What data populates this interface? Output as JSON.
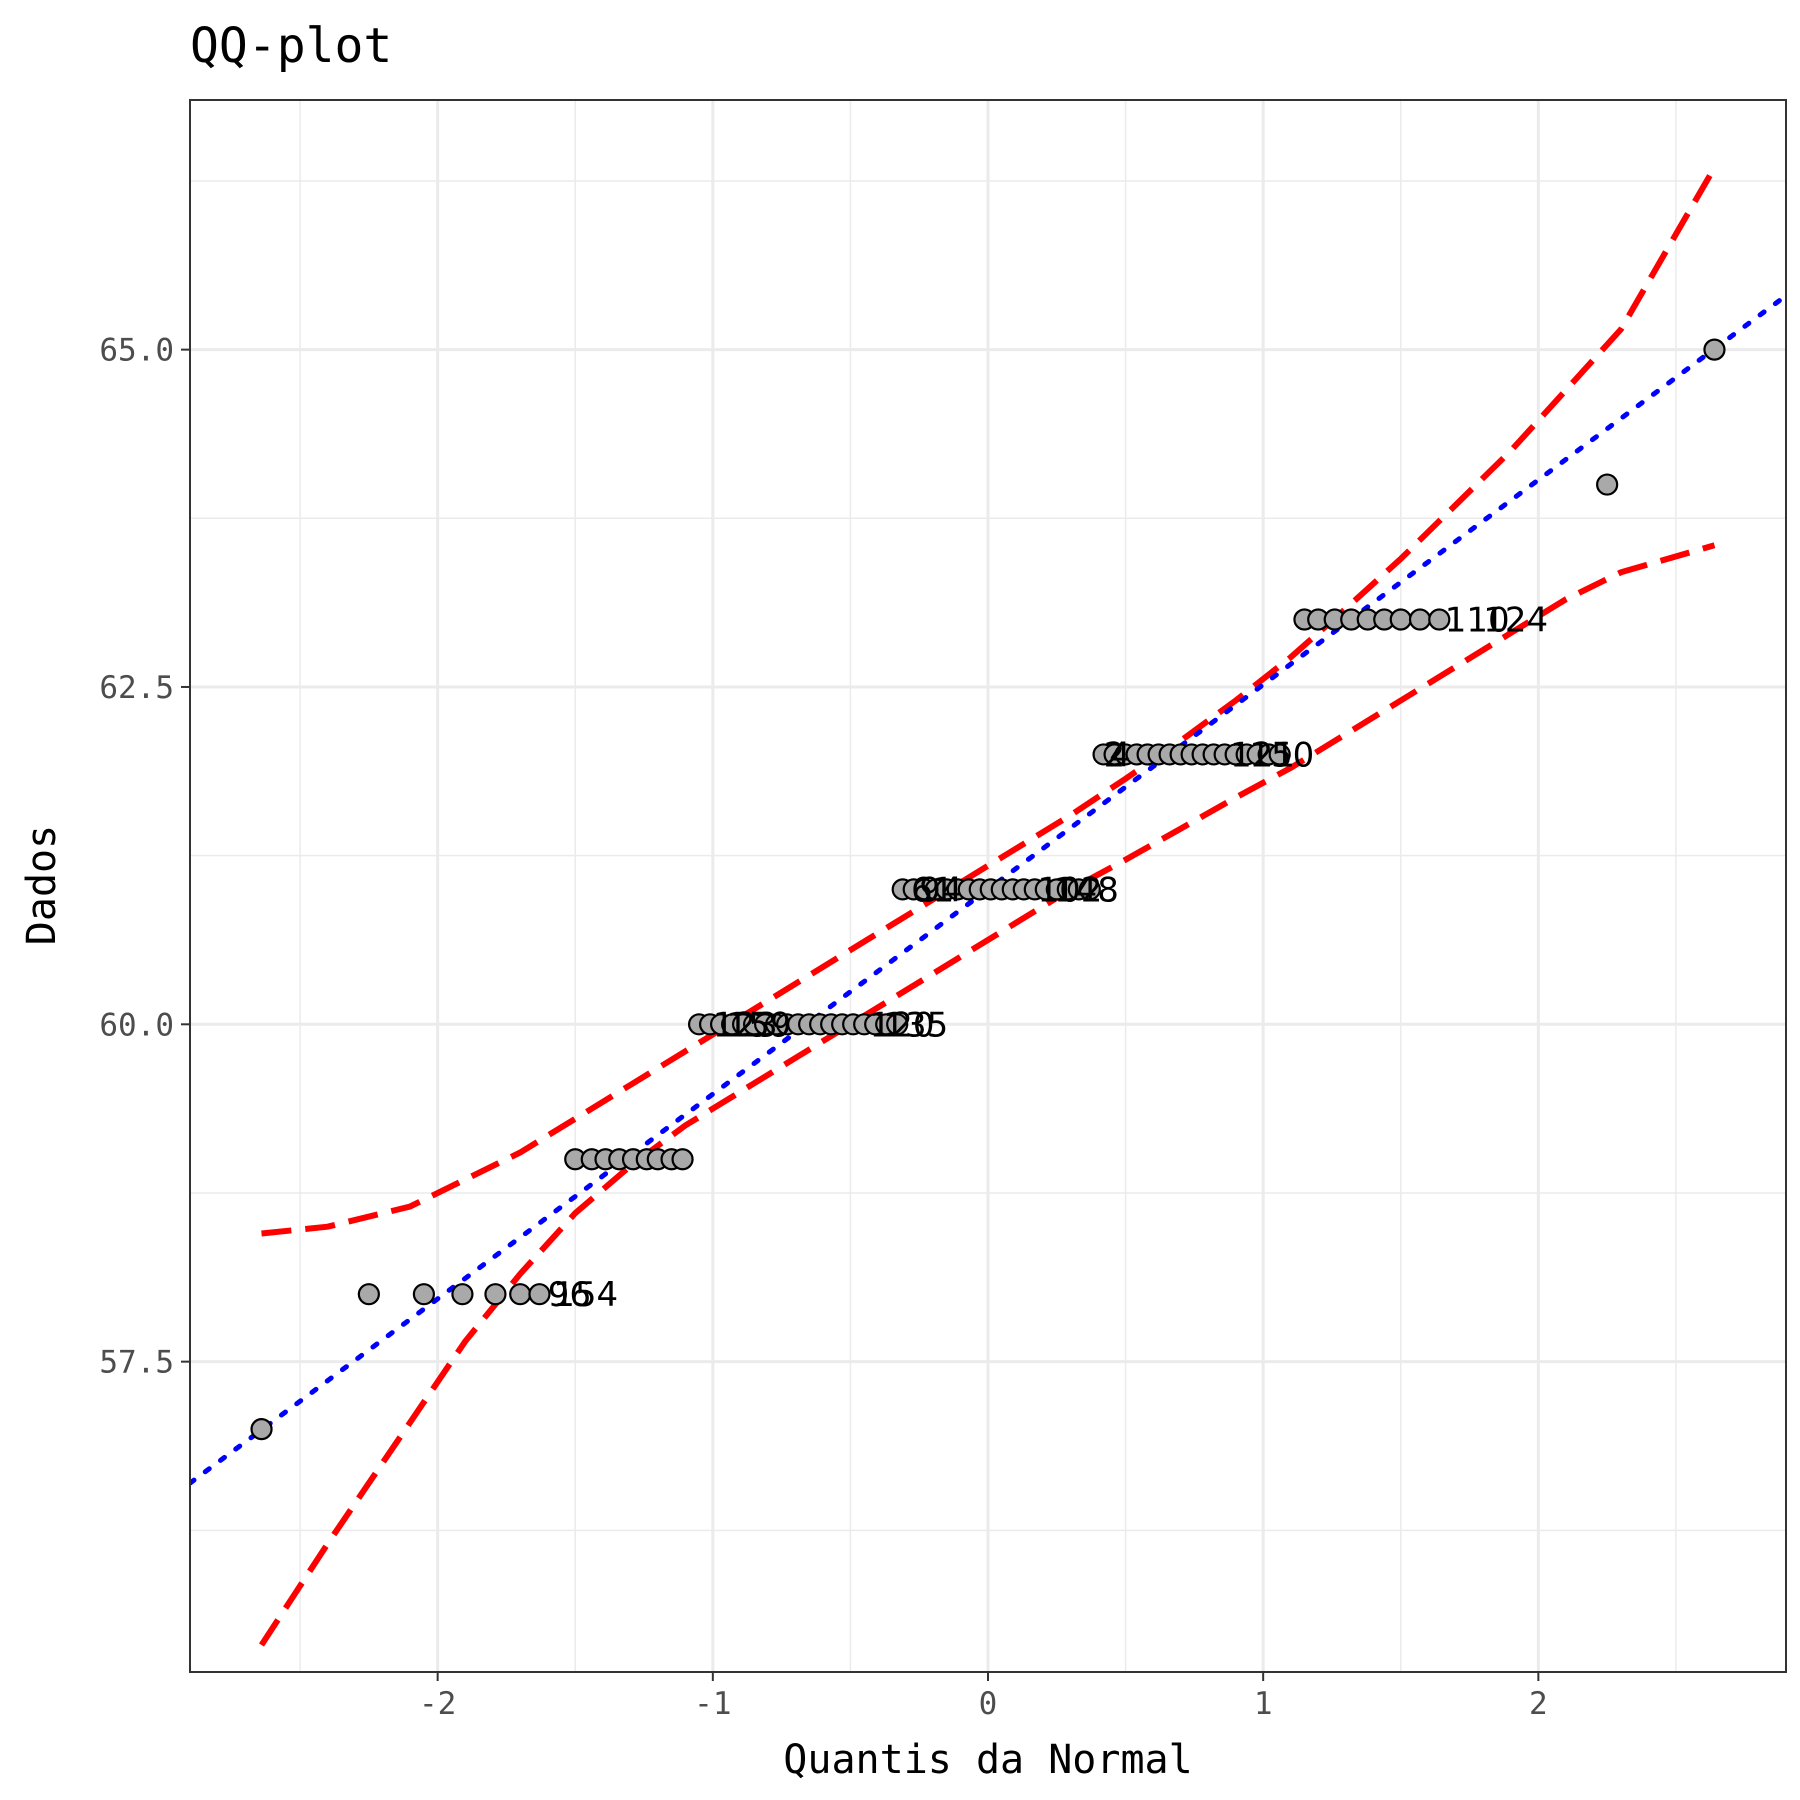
{
  "chart_data": {
    "type": "scatter",
    "title": "QQ-plot",
    "xlabel": "Quantis da Normal",
    "ylabel": "Dados",
    "xlim": [
      -2.9,
      2.9
    ],
    "ylim": [
      55.2,
      66.85
    ],
    "x_ticks": [
      -2,
      -1,
      0,
      1,
      2
    ],
    "x_tick_labels": [
      "-2",
      "-1",
      "0",
      "1",
      "2"
    ],
    "y_ticks": [
      57.5,
      60.0,
      62.5,
      65.0
    ],
    "y_tick_labels": [
      "57.5",
      "60.0",
      "62.5",
      "65.0"
    ],
    "grid": true,
    "points": [
      {
        "x": -2.64,
        "y": 57
      },
      {
        "x": -2.25,
        "y": 58
      },
      {
        "x": -2.05,
        "y": 58
      },
      {
        "x": -1.91,
        "y": 58
      },
      {
        "x": -1.79,
        "y": 58
      },
      {
        "x": -1.7,
        "y": 58
      },
      {
        "x": -1.63,
        "y": 58
      },
      {
        "x": -1.5,
        "y": 59
      },
      {
        "x": -1.44,
        "y": 59
      },
      {
        "x": -1.39,
        "y": 59
      },
      {
        "x": -1.34,
        "y": 59
      },
      {
        "x": -1.29,
        "y": 59
      },
      {
        "x": -1.24,
        "y": 59
      },
      {
        "x": -1.2,
        "y": 59
      },
      {
        "x": -1.15,
        "y": 59
      },
      {
        "x": -1.11,
        "y": 59
      },
      {
        "x": -1.05,
        "y": 60
      },
      {
        "x": -1.01,
        "y": 60
      },
      {
        "x": -0.97,
        "y": 60
      },
      {
        "x": -0.93,
        "y": 60
      },
      {
        "x": -0.89,
        "y": 60
      },
      {
        "x": -0.85,
        "y": 60
      },
      {
        "x": -0.81,
        "y": 60
      },
      {
        "x": -0.77,
        "y": 60
      },
      {
        "x": -0.73,
        "y": 60
      },
      {
        "x": -0.69,
        "y": 60
      },
      {
        "x": -0.65,
        "y": 60
      },
      {
        "x": -0.61,
        "y": 60
      },
      {
        "x": -0.57,
        "y": 60
      },
      {
        "x": -0.53,
        "y": 60
      },
      {
        "x": -0.49,
        "y": 60
      },
      {
        "x": -0.45,
        "y": 60
      },
      {
        "x": -0.41,
        "y": 60
      },
      {
        "x": -0.37,
        "y": 60
      },
      {
        "x": -0.33,
        "y": 60
      },
      {
        "x": -0.31,
        "y": 61
      },
      {
        "x": -0.27,
        "y": 61
      },
      {
        "x": -0.23,
        "y": 61
      },
      {
        "x": -0.19,
        "y": 61
      },
      {
        "x": -0.15,
        "y": 61
      },
      {
        "x": -0.11,
        "y": 61
      },
      {
        "x": -0.07,
        "y": 61
      },
      {
        "x": -0.03,
        "y": 61
      },
      {
        "x": 0.01,
        "y": 61
      },
      {
        "x": 0.05,
        "y": 61
      },
      {
        "x": 0.09,
        "y": 61
      },
      {
        "x": 0.13,
        "y": 61
      },
      {
        "x": 0.17,
        "y": 61
      },
      {
        "x": 0.21,
        "y": 61
      },
      {
        "x": 0.25,
        "y": 61
      },
      {
        "x": 0.29,
        "y": 61
      },
      {
        "x": 0.33,
        "y": 61
      },
      {
        "x": 0.37,
        "y": 61
      },
      {
        "x": 0.42,
        "y": 62
      },
      {
        "x": 0.46,
        "y": 62
      },
      {
        "x": 0.5,
        "y": 62
      },
      {
        "x": 0.54,
        "y": 62
      },
      {
        "x": 0.58,
        "y": 62
      },
      {
        "x": 0.62,
        "y": 62
      },
      {
        "x": 0.66,
        "y": 62
      },
      {
        "x": 0.7,
        "y": 62
      },
      {
        "x": 0.74,
        "y": 62
      },
      {
        "x": 0.78,
        "y": 62
      },
      {
        "x": 0.82,
        "y": 62
      },
      {
        "x": 0.86,
        "y": 62
      },
      {
        "x": 0.9,
        "y": 62
      },
      {
        "x": 0.94,
        "y": 62
      },
      {
        "x": 0.98,
        "y": 62
      },
      {
        "x": 1.02,
        "y": 62
      },
      {
        "x": 1.06,
        "y": 62
      },
      {
        "x": 1.15,
        "y": 63
      },
      {
        "x": 1.2,
        "y": 63
      },
      {
        "x": 1.26,
        "y": 63
      },
      {
        "x": 1.32,
        "y": 63
      },
      {
        "x": 1.38,
        "y": 63
      },
      {
        "x": 1.44,
        "y": 63
      },
      {
        "x": 1.5,
        "y": 63
      },
      {
        "x": 1.57,
        "y": 63
      },
      {
        "x": 1.64,
        "y": 63
      },
      {
        "x": 2.25,
        "y": 64
      },
      {
        "x": 2.64,
        "y": 65
      }
    ],
    "point_labels": [
      {
        "x": -1.6,
        "y": 58,
        "text": "96"
      },
      {
        "x": -1.58,
        "y": 58,
        "text": "154"
      },
      {
        "x": -1.0,
        "y": 60,
        "text": "123"
      },
      {
        "x": -0.95,
        "y": 60,
        "text": "159"
      },
      {
        "x": -0.43,
        "y": 60,
        "text": "120"
      },
      {
        "x": -0.38,
        "y": 60,
        "text": "135"
      },
      {
        "x": -0.28,
        "y": 61,
        "text": "61"
      },
      {
        "x": -0.25,
        "y": 61,
        "text": "94"
      },
      {
        "x": 0.18,
        "y": 61,
        "text": "102"
      },
      {
        "x": 0.24,
        "y": 61,
        "text": "148"
      },
      {
        "x": 0.42,
        "y": 62,
        "text": "2"
      },
      {
        "x": 0.44,
        "y": 62,
        "text": "4"
      },
      {
        "x": 0.88,
        "y": 62,
        "text": "121"
      },
      {
        "x": 0.95,
        "y": 62,
        "text": "150"
      },
      {
        "x": 1.66,
        "y": 63,
        "text": "110"
      },
      {
        "x": 1.8,
        "y": 63,
        "text": "124"
      }
    ],
    "reference_line": {
      "style": "dotted",
      "color": "#0000ff",
      "x": [
        -2.9,
        2.9
      ],
      "y": [
        56.6,
        65.4
      ]
    },
    "confidence_band": {
      "style": "dashed",
      "color": "#ff0000",
      "x": [
        -2.64,
        -2.4,
        -2.1,
        -1.9,
        -1.7,
        -1.5,
        -1.3,
        -1.1,
        -0.9,
        -0.7,
        -0.5,
        -0.3,
        -0.1,
        0.1,
        0.3,
        0.5,
        0.7,
        0.9,
        1.1,
        1.3,
        1.5,
        1.7,
        1.9,
        2.1,
        2.3,
        2.64
      ],
      "upper": [
        58.45,
        58.5,
        58.65,
        58.85,
        59.05,
        59.3,
        59.55,
        59.8,
        60.05,
        60.3,
        60.55,
        60.8,
        61.05,
        61.3,
        61.55,
        61.82,
        62.1,
        62.4,
        62.72,
        63.08,
        63.45,
        63.85,
        64.25,
        64.7,
        65.15,
        66.35
      ],
      "lower": [
        55.4,
        56.15,
        57.05,
        57.65,
        58.15,
        58.6,
        58.95,
        59.25,
        59.5,
        59.75,
        60.0,
        60.25,
        60.5,
        60.75,
        61.0,
        61.22,
        61.45,
        61.68,
        61.9,
        62.15,
        62.4,
        62.65,
        62.9,
        63.15,
        63.35,
        63.55
      ]
    }
  }
}
